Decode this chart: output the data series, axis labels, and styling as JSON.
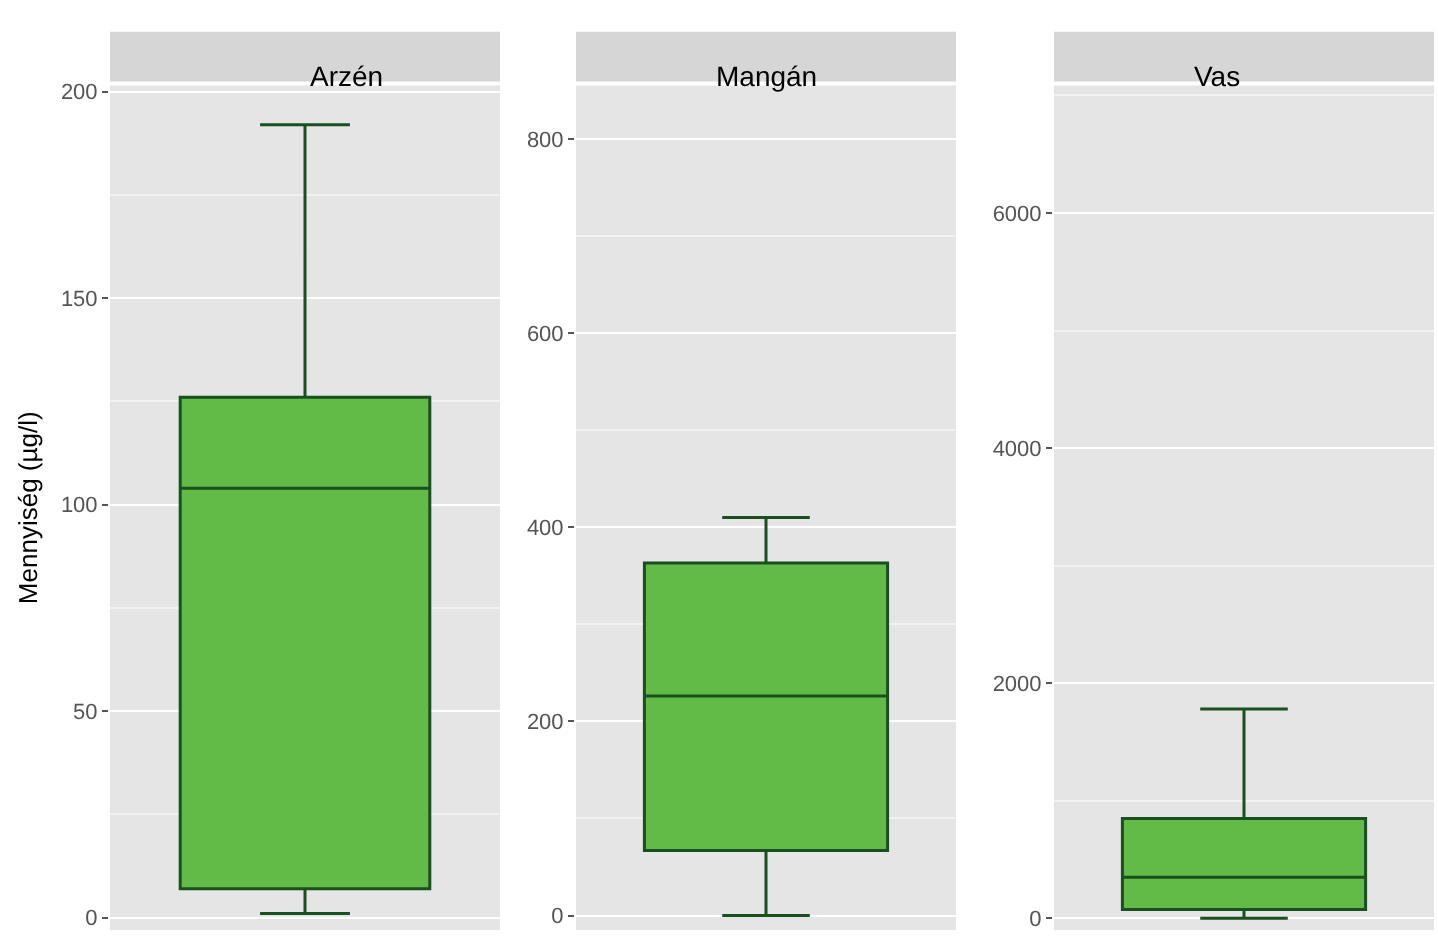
{
  "chart_data": [
    {
      "type": "box",
      "title": "Arzén",
      "ylabel": "Mennyiség (µg/l)",
      "categories": [
        null
      ],
      "color": "#62bb47",
      "boxes": [
        {
          "low": 1,
          "q1": 7,
          "median": 104,
          "q3": 126,
          "high": 192
        }
      ],
      "ylim": [
        -3,
        201.5
      ],
      "yticks": [
        0,
        50,
        100,
        150,
        200
      ],
      "grid": true
    },
    {
      "type": "box",
      "title": "Mangán",
      "categories": [
        null
      ],
      "color": "#62bb47",
      "boxes": [
        {
          "low": 0,
          "q1": 67,
          "median": 226,
          "q3": 363,
          "high": 410
        }
      ],
      "ylim": [
        -15,
        855
      ],
      "yticks": [
        0,
        200,
        400,
        600,
        800
      ],
      "grid": true
    },
    {
      "type": "box",
      "title": "Vas",
      "categories": [
        null
      ],
      "color": "#62bb47",
      "boxes": [
        {
          "low": 0,
          "q1": 75,
          "median": 350,
          "q3": 850,
          "high": 1780
        }
      ],
      "ylim": [
        -100,
        7085
      ],
      "yticks": [
        0,
        2000,
        4000,
        6000
      ],
      "grid": true
    }
  ]
}
